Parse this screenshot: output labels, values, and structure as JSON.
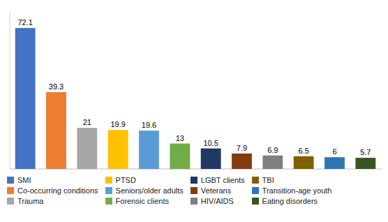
{
  "chart_data": {
    "type": "bar",
    "categories": [
      "SMI",
      "Co-occurring conditions",
      "Trauma",
      "PTSD",
      "Seniors/older adults",
      "Forensic clients",
      "LGBT clients",
      "Veterans",
      "HIV/AIDS",
      "TBI",
      "Transition-age youth",
      "Eating disorders"
    ],
    "values": [
      72.1,
      39.3,
      21,
      19.9,
      19.6,
      13,
      10.5,
      7.9,
      6.9,
      6.5,
      6,
      5.7
    ],
    "colors": [
      "#4472C4",
      "#ED7D31",
      "#A6A6A6",
      "#FFC000",
      "#5B9BD5",
      "#70AD47",
      "#1F3864",
      "#843C0C",
      "#7F7F7F",
      "#806000",
      "#2E75B6",
      "#375623"
    ],
    "ylim": [
      0,
      80
    ],
    "data_labels": true,
    "tick_labels": false,
    "legend": "bottom",
    "grid": false
  }
}
